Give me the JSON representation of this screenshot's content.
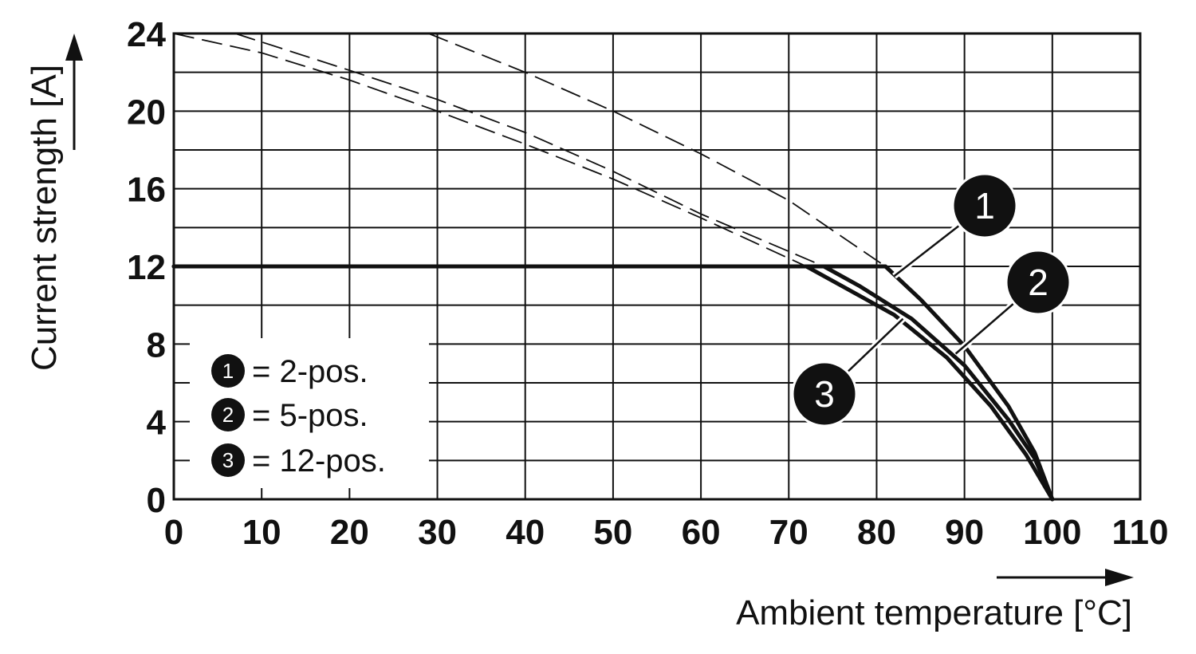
{
  "chart_data": {
    "type": "line",
    "xlabel": "Ambient temperature [°C]",
    "ylabel": "Current strength [A]",
    "xlim": [
      0,
      110
    ],
    "ylim": [
      0,
      24
    ],
    "x_ticks": [
      "0",
      "10",
      "20",
      "30",
      "40",
      "50",
      "60",
      "70",
      "80",
      "90",
      "100",
      "110"
    ],
    "y_ticks": [
      "0",
      "4",
      "8",
      "12",
      "16",
      "20",
      "24"
    ],
    "grid": true,
    "max_current": 12,
    "series": [
      {
        "name": "1",
        "style": "solid",
        "points": [
          [
            0,
            12
          ],
          [
            81,
            12
          ],
          [
            85,
            10.3
          ],
          [
            90,
            7.9
          ],
          [
            95,
            4.8
          ],
          [
            98,
            2.4
          ],
          [
            100,
            0
          ]
        ]
      },
      {
        "name": "2",
        "style": "solid",
        "points": [
          [
            0,
            12
          ],
          [
            74,
            12
          ],
          [
            78,
            11
          ],
          [
            84,
            9.3
          ],
          [
            90,
            6.9
          ],
          [
            95,
            4.1
          ],
          [
            98,
            2.1
          ],
          [
            100,
            0
          ]
        ]
      },
      {
        "name": "3",
        "style": "solid",
        "points": [
          [
            0,
            12
          ],
          [
            72,
            12
          ],
          [
            76,
            11
          ],
          [
            82,
            9.5
          ],
          [
            88,
            7.3
          ],
          [
            93,
            4.8
          ],
          [
            97,
            2.3
          ],
          [
            100,
            0
          ]
        ]
      },
      {
        "name": "1",
        "style": "dashed",
        "points": [
          [
            29,
            24
          ],
          [
            40,
            22
          ],
          [
            50,
            20
          ],
          [
            60,
            17.8
          ],
          [
            70,
            15.4
          ],
          [
            81,
            12
          ]
        ]
      },
      {
        "name": "2",
        "style": "dashed",
        "points": [
          [
            7,
            24
          ],
          [
            20,
            22.1
          ],
          [
            30,
            20.6
          ],
          [
            40,
            18.9
          ],
          [
            50,
            16.9
          ],
          [
            60,
            14.7
          ],
          [
            74,
            12
          ]
        ]
      },
      {
        "name": "3",
        "style": "dashed",
        "points": [
          [
            0,
            24
          ],
          [
            10,
            23
          ],
          [
            20,
            21.6
          ],
          [
            30,
            20
          ],
          [
            40,
            18.3
          ],
          [
            50,
            16.5
          ],
          [
            60,
            14.5
          ],
          [
            72,
            12
          ]
        ]
      }
    ],
    "markers": [
      {
        "label": "1",
        "leader_to": [
          82,
          11.5
        ]
      },
      {
        "label": "2",
        "leader_to": [
          89,
          7.5
        ]
      },
      {
        "label": "3",
        "leader_to": [
          83,
          9.3
        ]
      }
    ],
    "legend": {
      "placement": "bottom-left",
      "entries": [
        {
          "marker": "1",
          "text": "= 2-pos."
        },
        {
          "marker": "2",
          "text": "= 5-pos."
        },
        {
          "marker": "3",
          "text": "= 12-pos."
        }
      ]
    },
    "colors": {
      "line": "#111111",
      "grid": "#111111",
      "marker_fill": "#111111",
      "background": "#ffffff"
    }
  }
}
